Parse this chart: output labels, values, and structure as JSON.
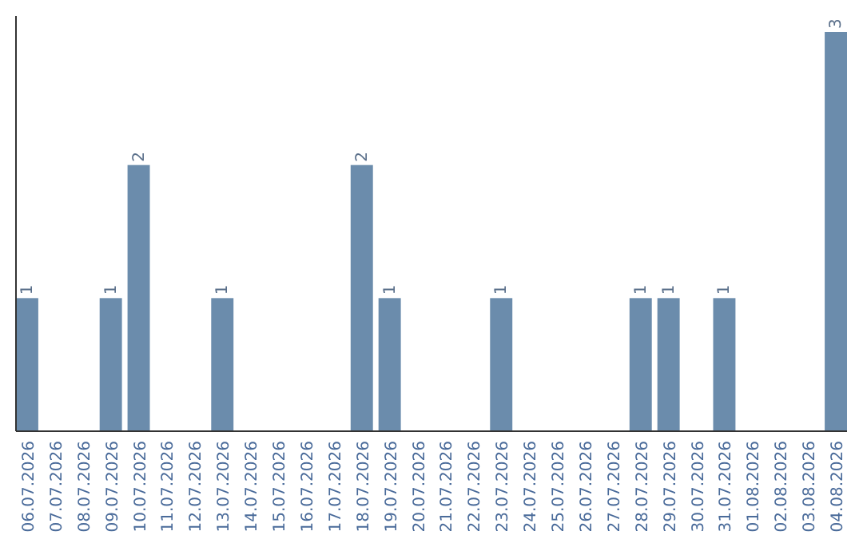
{
  "chart_data": {
    "type": "bar",
    "categories": [
      "06.07.2026",
      "07.07.2026",
      "08.07.2026",
      "09.07.2026",
      "10.07.2026",
      "11.07.2026",
      "12.07.2026",
      "13.07.2026",
      "14.07.2026",
      "15.07.2026",
      "16.07.2026",
      "17.07.2026",
      "18.07.2026",
      "19.07.2026",
      "20.07.2026",
      "21.07.2026",
      "22.07.2026",
      "23.07.2026",
      "24.07.2026",
      "25.07.2026",
      "26.07.2026",
      "27.07.2026",
      "28.07.2026",
      "29.07.2026",
      "30.07.2026",
      "31.07.2026",
      "01.08.2026",
      "02.08.2026",
      "03.08.2026",
      "04.08.2026"
    ],
    "values": [
      1,
      0,
      0,
      1,
      2,
      0,
      0,
      1,
      0,
      0,
      0,
      0,
      2,
      1,
      0,
      0,
      0,
      1,
      0,
      0,
      0,
      0,
      1,
      1,
      0,
      1,
      0,
      0,
      0,
      3
    ],
    "value_labels": [
      "1",
      null,
      null,
      "1",
      "2",
      null,
      null,
      "1",
      null,
      null,
      null,
      null,
      "2",
      "1",
      null,
      null,
      null,
      "1",
      null,
      null,
      null,
      null,
      "1",
      "1",
      null,
      "1",
      null,
      null,
      null,
      "3"
    ],
    "color": "#6b8cac"
  }
}
